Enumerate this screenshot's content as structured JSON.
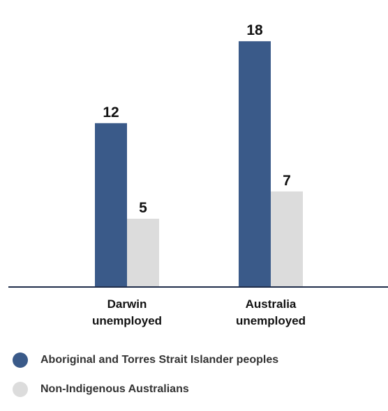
{
  "chart_data": {
    "type": "bar",
    "categories": [
      "Darwin unemployed",
      "Australia unemployed"
    ],
    "category_lines": [
      [
        "Darwin",
        "unemployed"
      ],
      [
        "Australia",
        "unemployed"
      ]
    ],
    "series": [
      {
        "name": "Aboriginal and Torres Strait Islander peoples",
        "values": [
          12,
          18
        ],
        "color": "#3a5a89"
      },
      {
        "name": "Non-Indigenous Australians",
        "values": [
          5,
          7
        ],
        "color": "#dcdcdc"
      }
    ],
    "title": "",
    "xlabel": "",
    "ylabel": "",
    "ylim": [
      0,
      20
    ],
    "grid": false,
    "axis_color": "#1f2d4a",
    "legend_position": "bottom-left"
  }
}
